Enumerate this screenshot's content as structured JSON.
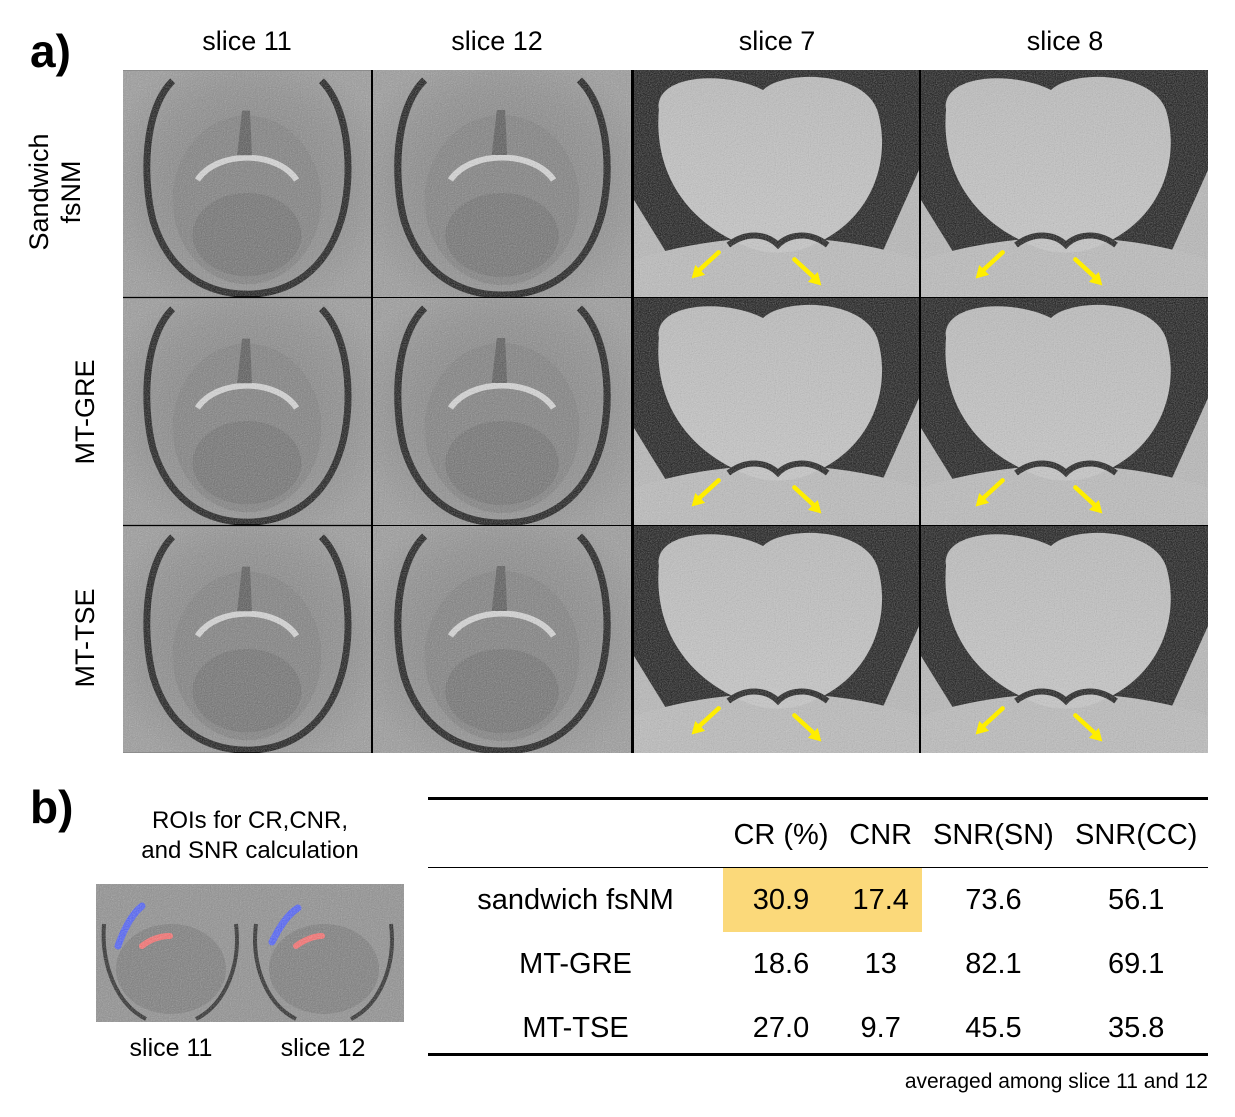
{
  "panel_a": {
    "letter": "a)",
    "columns": [
      "slice 11",
      "slice 12",
      "slice 7",
      "slice 8"
    ],
    "rows": [
      {
        "label_lines": [
          "Sandwich",
          "fsNM"
        ]
      },
      {
        "label_lines": [
          "MT-GRE"
        ]
      },
      {
        "label_lines": [
          "MT-TSE"
        ]
      }
    ],
    "arrow_color": "#ffee00"
  },
  "panel_b": {
    "letter": "b)",
    "roi_caption_lines": [
      "ROIs for CR,CNR,",
      "and SNR calculation"
    ],
    "roi_slices": [
      "slice 11",
      "slice 12"
    ],
    "roi_colors": {
      "sn": "#ff6b6b",
      "cc": "#4a5cff"
    },
    "table": {
      "headers": [
        "",
        "CR (%)",
        "CNR",
        "SNR(SN)",
        "SNR(CC)"
      ],
      "rows": [
        {
          "name": "sandwich fsNM",
          "values": [
            "30.9",
            "17.4",
            "73.6",
            "56.1"
          ]
        },
        {
          "name": "MT-GRE",
          "values": [
            "18.6",
            "13",
            "82.1",
            "69.1"
          ]
        },
        {
          "name": "MT-TSE",
          "values": [
            "27.0",
            "9.7",
            "45.5",
            "35.8"
          ]
        }
      ],
      "highlight_color": "#fbd97a"
    },
    "footnote": "averaged among slice 11 and 12"
  }
}
